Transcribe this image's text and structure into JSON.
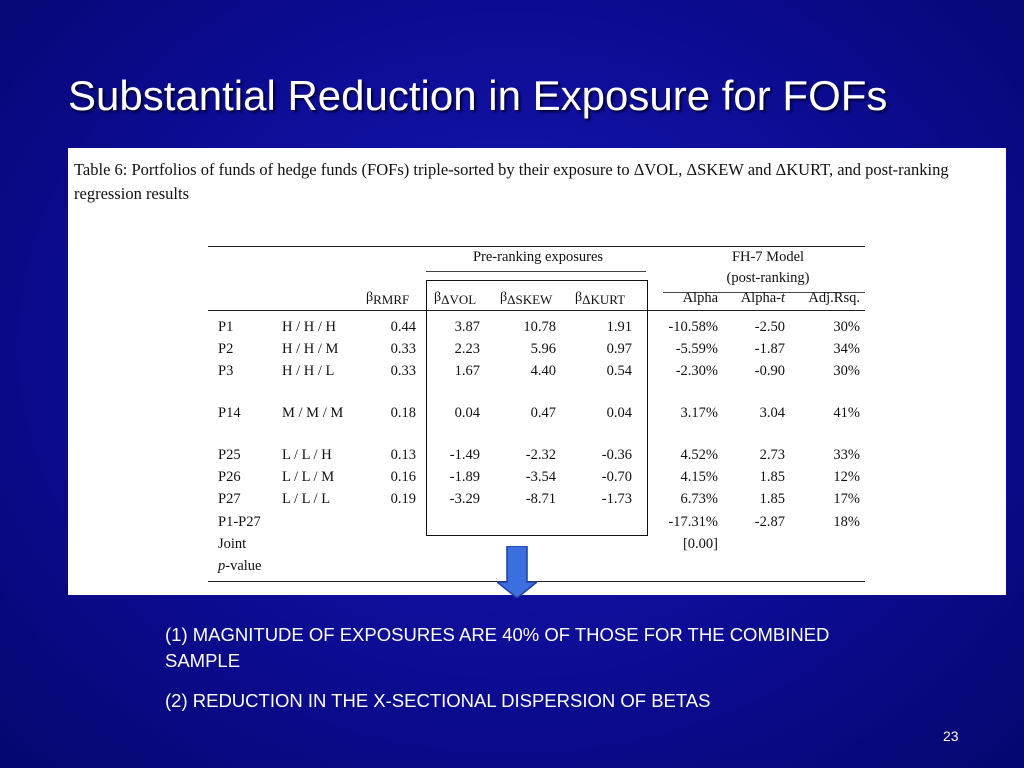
{
  "slide": {
    "title": "Substantial Reduction in Exposure for FOFs",
    "page_number": "23",
    "points": [
      "(1) MAGNITUDE OF EXPOSURES ARE 40% OF THOSE FOR THE COMBINED SAMPLE",
      "(2) REDUCTION IN THE X-SECTIONAL DISPERSION OF BETAS"
    ],
    "arrow_color": "#3b6fe0"
  },
  "table": {
    "caption": "Table 6:  Portfolios of funds of hedge funds (FOFs) triple-sorted by their exposure to ΔVOL, ΔSKEW and ΔKURT, and post-ranking regression results",
    "group_pre": "Pre-ranking exposures",
    "group_fh_1": "FH-7 Model",
    "group_fh_2": "(post-ranking)",
    "beta_symbol": "β",
    "col_rmrf": "RMRF",
    "col_vol": "ΔVOL",
    "col_skew": "ΔSKEW",
    "col_kurt": "ΔKURT",
    "col_alpha": "Alpha",
    "col_alpha_t_prefix": "Alpha-",
    "col_alpha_t_italic": "t",
    "col_adjrsq": "Adj.Rsq.",
    "rows": [
      {
        "p": "P1",
        "sort": "H / H / H",
        "rmrf": "0.44",
        "vol": "3.87",
        "skew": "10.78",
        "kurt": "1.91",
        "alpha": "-10.58%",
        "alpha_t": "-2.50",
        "rsq": "30%"
      },
      {
        "p": "P2",
        "sort": "H / H / M",
        "rmrf": "0.33",
        "vol": "2.23",
        "skew": "5.96",
        "kurt": "0.97",
        "alpha": "-5.59%",
        "alpha_t": "-1.87",
        "rsq": "34%"
      },
      {
        "p": "P3",
        "sort": "H / H / L",
        "rmrf": "0.33",
        "vol": "1.67",
        "skew": "4.40",
        "kurt": "0.54",
        "alpha": "-2.30%",
        "alpha_t": "-0.90",
        "rsq": "30%"
      },
      {
        "p": "P14",
        "sort": "M / M / M",
        "rmrf": "0.18",
        "vol": "0.04",
        "skew": "0.47",
        "kurt": "0.04",
        "alpha": "3.17%",
        "alpha_t": "3.04",
        "rsq": "41%"
      },
      {
        "p": "P25",
        "sort": "L / L / H",
        "rmrf": "0.13",
        "vol": "-1.49",
        "skew": "-2.32",
        "kurt": "-0.36",
        "alpha": "4.52%",
        "alpha_t": "2.73",
        "rsq": "33%"
      },
      {
        "p": "P26",
        "sort": "L / L / M",
        "rmrf": "0.16",
        "vol": "-1.89",
        "skew": "-3.54",
        "kurt": "-0.70",
        "alpha": "4.15%",
        "alpha_t": "1.85",
        "rsq": "12%"
      },
      {
        "p": "P27",
        "sort": "L / L / L",
        "rmrf": "0.19",
        "vol": "-3.29",
        "skew": "-8.71",
        "kurt": "-1.73",
        "alpha": "6.73%",
        "alpha_t": "1.85",
        "rsq": "17%"
      }
    ],
    "spread": {
      "label_1": "P1-P27",
      "label_2": "Joint",
      "label_3_italic": "p",
      "label_3_rest": "-value",
      "alpha": "-17.31%",
      "alpha_t": "-2.87",
      "rsq": "18%",
      "joint_p": "[0.00]"
    }
  }
}
